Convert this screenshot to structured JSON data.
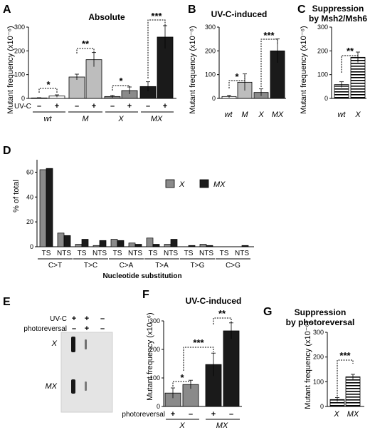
{
  "colors": {
    "light": "#bdbdbd",
    "mid": "#8a8a8a",
    "dark": "#1a1a1a",
    "wt": "#ffffff"
  },
  "panels": {
    "A": {
      "label": "A",
      "title": "Absolute",
      "ylabel": "Mutant frequency (x10⁻⁶)",
      "row_label": "UV-C",
      "signs": [
        "–",
        "+",
        "–",
        "+",
        "–",
        "+",
        "–",
        "+"
      ],
      "groups": [
        "wt",
        "M",
        "X",
        "MX"
      ],
      "stars": [
        "*",
        "**",
        "*",
        "***"
      ]
    },
    "B": {
      "label": "B",
      "title": "UV-C-induced",
      "ylabel": "Mutant frequency (x10⁻⁶)",
      "cats": [
        "wt",
        "M",
        "X",
        "MX"
      ],
      "stars": [
        "*",
        "***"
      ]
    },
    "C": {
      "label": "C",
      "title_line1": "Suppression",
      "title_line2": "by Msh2/Msh6",
      "ylabel": "Mutant frequency (x10⁻⁶)",
      "cats": [
        "wt",
        "X"
      ],
      "stars": [
        "**"
      ]
    },
    "D": {
      "label": "D",
      "ylabel": "% of total",
      "xlabel": "Nucleotide substitution",
      "legend": [
        "X",
        "MX"
      ],
      "strand_labels": [
        "TS",
        "NTS"
      ],
      "groups": [
        "C>T",
        "T>C",
        "C>A",
        "T>A",
        "T>G",
        "C>G"
      ]
    },
    "E": {
      "label": "E",
      "row1": "UV-C",
      "row2": "photoreversal",
      "col_row1": [
        "+",
        "+",
        "–"
      ],
      "col_row2": [
        "–",
        "+",
        "–"
      ],
      "lane_labels": [
        "X",
        "MX"
      ]
    },
    "F": {
      "label": "F",
      "title": "UV-C-induced",
      "ylabel": "Mutant frequency (x10⁻⁶)",
      "row_label": "photoreversal",
      "signs": [
        "+",
        "–",
        "+",
        "–"
      ],
      "groups": [
        "X",
        "MX"
      ],
      "stars": [
        "*",
        "**",
        "***"
      ]
    },
    "G": {
      "label": "G",
      "title_line1": "Suppression",
      "title_line2": "by photoreversal",
      "ylabel": "Mutant frequency (x10⁻⁶)",
      "cats": [
        "X",
        "MX"
      ],
      "stars": [
        "***"
      ]
    }
  },
  "chart_data": [
    {
      "panel": "A",
      "type": "bar",
      "title": "Absolute",
      "ylabel": "Mutant frequency (x10⁻⁶)",
      "ylim": [
        0,
        300
      ],
      "yticks": [
        0,
        100,
        200,
        300
      ],
      "bars": [
        {
          "group": "wt",
          "uv": "–",
          "value": 2,
          "err": 1
        },
        {
          "group": "wt",
          "uv": "+",
          "value": 10,
          "err": 5
        },
        {
          "group": "M",
          "uv": "–",
          "value": 90,
          "err": 12
        },
        {
          "group": "M",
          "uv": "+",
          "value": 163,
          "err": 30
        },
        {
          "group": "X",
          "uv": "–",
          "value": 8,
          "err": 5
        },
        {
          "group": "X",
          "uv": "+",
          "value": 33,
          "err": 15
        },
        {
          "group": "MX",
          "uv": "–",
          "value": 50,
          "err": 20
        },
        {
          "group": "MX",
          "uv": "+",
          "value": 258,
          "err": 48
        }
      ]
    },
    {
      "panel": "B",
      "type": "bar",
      "title": "UV-C-induced",
      "ylabel": "Mutant frequency (x10⁻⁶)",
      "ylim": [
        0,
        300
      ],
      "yticks": [
        0,
        100,
        200,
        300
      ],
      "categories": [
        "wt",
        "M",
        "X",
        "MX"
      ],
      "values": [
        8,
        68,
        25,
        200
      ],
      "errors": [
        5,
        35,
        15,
        50
      ]
    },
    {
      "panel": "C",
      "type": "bar",
      "title": "Suppression by Msh2/Msh6",
      "ylabel": "Mutant frequency (x10⁻⁶)",
      "ylim": [
        0,
        300
      ],
      "yticks": [
        0,
        100,
        200,
        300
      ],
      "categories": [
        "wt",
        "X"
      ],
      "values": [
        58,
        173
      ],
      "errors": [
        12,
        22
      ]
    },
    {
      "panel": "D",
      "type": "bar",
      "ylabel": "% of total",
      "xlabel": "Nucleotide substitution",
      "ylim": [
        0,
        70
      ],
      "yticks": [
        0,
        20,
        40,
        60
      ],
      "categories": [
        "TS",
        "NTS",
        "TS",
        "NTS",
        "TS",
        "NTS",
        "TS",
        "NTS",
        "TS",
        "NTS",
        "TS",
        "NTS"
      ],
      "series": [
        {
          "name": "X",
          "values": [
            62,
            11,
            2,
            1,
            6,
            3,
            7,
            2,
            0,
            2,
            0,
            0
          ]
        },
        {
          "name": "MX",
          "values": [
            63,
            9,
            6,
            5,
            5,
            2,
            2,
            6,
            1,
            1,
            0,
            1
          ]
        }
      ]
    },
    {
      "panel": "F",
      "type": "bar",
      "title": "UV-C-induced",
      "ylabel": "Mutant frequency (x10⁻⁶)",
      "ylim": [
        0,
        300
      ],
      "yticks": [
        0,
        100,
        200,
        300
      ],
      "bars": [
        {
          "group": "X",
          "photoreversal": "+",
          "value": 47,
          "err": 18
        },
        {
          "group": "X",
          "photoreversal": "–",
          "value": 77,
          "err": 15
        },
        {
          "group": "MX",
          "photoreversal": "+",
          "value": 147,
          "err": 40
        },
        {
          "group": "MX",
          "photoreversal": "–",
          "value": 265,
          "err": 28
        }
      ]
    },
    {
      "panel": "G",
      "type": "bar",
      "title": "Suppression by photoreversal",
      "ylabel": "Mutant frequency (x10⁻⁶)",
      "ylim": [
        0,
        300
      ],
      "yticks": [
        0,
        100,
        200,
        300
      ],
      "categories": [
        "X",
        "MX"
      ],
      "values": [
        28,
        120
      ],
      "errors": [
        8,
        10
      ]
    }
  ]
}
